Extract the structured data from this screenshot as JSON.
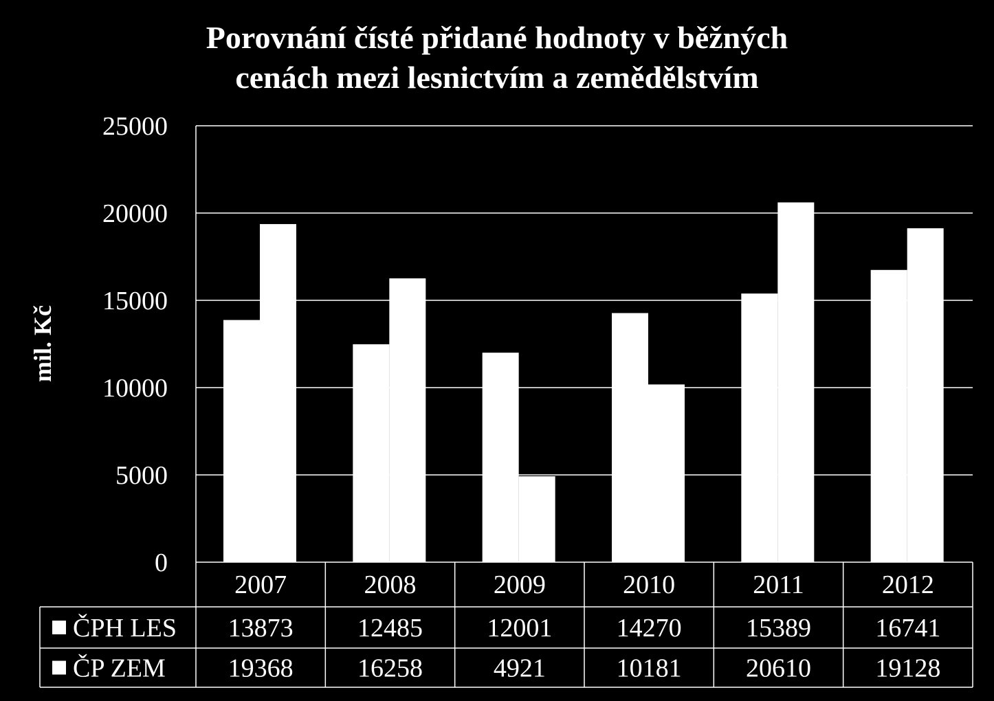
{
  "chart_data": {
    "type": "bar",
    "title_lines": [
      "Porovnání čísté přidané hodnoty v běžných",
      "cenách mezi lesnictvím a zemědělstvím"
    ],
    "ylabel": "mil. Kč",
    "ylim": [
      0,
      25000
    ],
    "yticks": [
      0,
      5000,
      10000,
      15000,
      20000,
      25000
    ],
    "grid": true,
    "legend": "data-table",
    "categories": [
      "2007",
      "2008",
      "2009",
      "2010",
      "2011",
      "2012"
    ],
    "series": [
      {
        "name": "ČPH LES",
        "color": "#ffffff",
        "values": [
          13873,
          12485,
          12001,
          14270,
          15389,
          16741
        ]
      },
      {
        "name": "ČP ZEM",
        "color": "#ffffff",
        "values": [
          19368,
          16258,
          4921,
          10181,
          20610,
          19128
        ]
      }
    ]
  }
}
